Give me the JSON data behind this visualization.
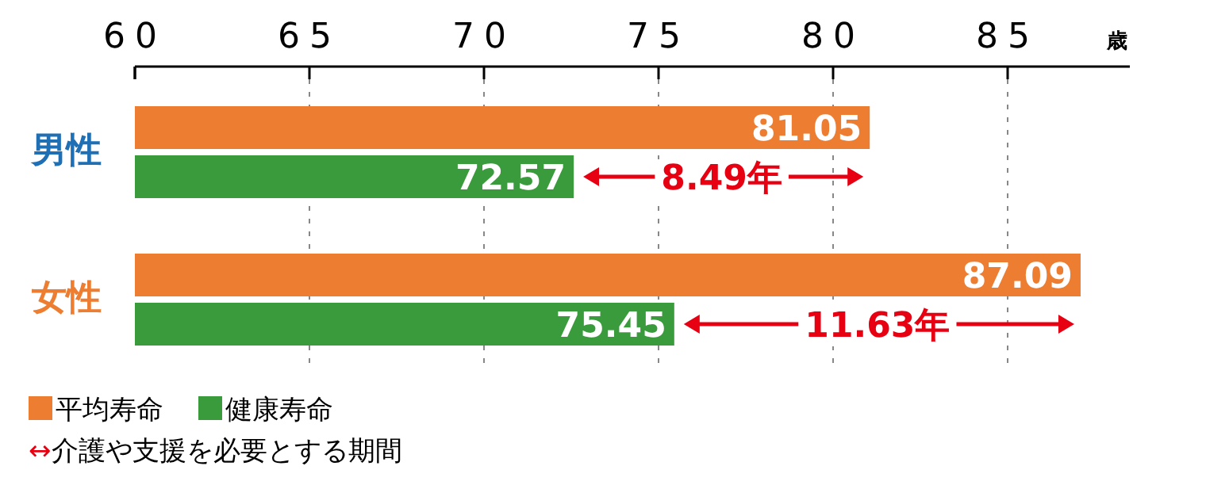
{
  "chart_data": {
    "type": "bar",
    "orientation": "horizontal",
    "xlabel": "歳",
    "categories": [
      "男性",
      "女性"
    ],
    "series": [
      {
        "name": "平均寿命",
        "color": "#ed7d31",
        "values": [
          81.05,
          87.09
        ]
      },
      {
        "name": "健康寿命",
        "color": "#3a9b3c",
        "values": [
          72.57,
          75.45
        ]
      }
    ],
    "xlim": [
      60,
      88.5
    ],
    "xticks": [
      60,
      65,
      70,
      75,
      80,
      85
    ],
    "grid": "x",
    "data_labels": true,
    "legend": "bottom left",
    "annotations": [
      {
        "text": "8.49年",
        "x": 76.81,
        "y": "男性"
      },
      {
        "text": "11.63年",
        "x": 81.27,
        "y": "女性"
      },
      "↔介護や支援を必要とする期間"
    ]
  }
}
